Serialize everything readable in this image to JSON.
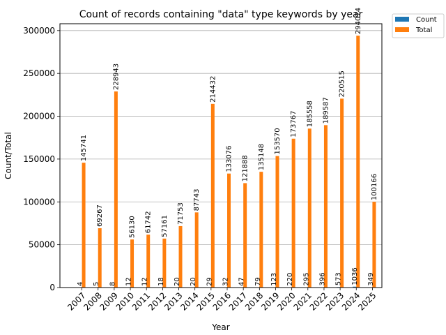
{
  "chart_data": {
    "type": "bar",
    "title": "Count of records containing \"data\" type keywords by year",
    "xlabel": "Year",
    "ylabel": "Count/Total",
    "categories": [
      "2007",
      "2008",
      "2009",
      "2010",
      "2011",
      "2012",
      "2013",
      "2014",
      "2015",
      "2016",
      "2017",
      "2018",
      "2019",
      "2020",
      "2021",
      "2022",
      "2023",
      "2024",
      "2025"
    ],
    "series": [
      {
        "name": "Count",
        "color": "#1f77b4",
        "values": [
          4,
          5,
          8,
          12,
          12,
          18,
          20,
          20,
          29,
          32,
          47,
          79,
          123,
          220,
          295,
          396,
          573,
          1036,
          349
        ]
      },
      {
        "name": "Total",
        "color": "#ff7f0e",
        "values": [
          145741,
          69267,
          228943,
          56130,
          61742,
          57161,
          71753,
          87743,
          214432,
          133076,
          121888,
          135148,
          153570,
          173767,
          185558,
          189587,
          220515,
          294074,
          100166
        ]
      }
    ],
    "ylim": [
      0,
      308000
    ],
    "yticks": [
      0,
      50000,
      100000,
      150000,
      200000,
      250000,
      300000
    ],
    "ytick_labels": [
      "0",
      "50000",
      "100000",
      "150000",
      "200000",
      "250000",
      "300000"
    ],
    "grid": "y",
    "legend_placement": "upper-right-outside"
  }
}
